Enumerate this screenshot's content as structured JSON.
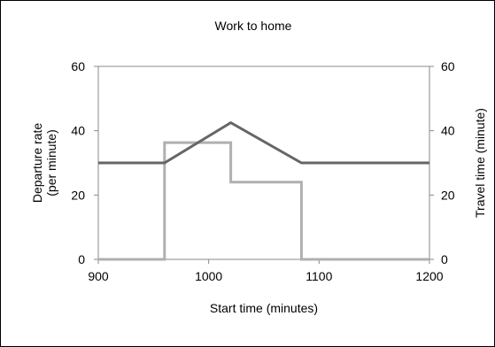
{
  "chart_data": {
    "type": "line",
    "title": "Work to home",
    "xlabel": "Start time (minutes)",
    "ylabel_left": [
      "Departure rate",
      "(per minute)"
    ],
    "ylabel_right": "Travel time (minute)",
    "xlim": [
      900,
      1200
    ],
    "ylim_left": [
      0,
      60
    ],
    "ylim_right": [
      0,
      60
    ],
    "x_ticks": [
      900,
      1000,
      1100,
      1200
    ],
    "y_ticks_left": [
      0,
      20,
      40,
      60
    ],
    "y_ticks_right": [
      0,
      20,
      40,
      60
    ],
    "grid": false,
    "legend": "none",
    "series": [
      {
        "axis": "right",
        "color": "#666666",
        "points": [
          [
            900,
            30
          ],
          [
            960,
            30
          ],
          [
            1020,
            42.5
          ],
          [
            1084,
            30
          ],
          [
            1200,
            30
          ]
        ]
      },
      {
        "axis": "left",
        "color": "#b0b0b0",
        "points": [
          [
            900,
            0
          ],
          [
            960,
            0
          ],
          [
            960,
            36.3
          ],
          [
            1020,
            36.3
          ],
          [
            1020,
            24
          ],
          [
            1084,
            24
          ],
          [
            1084,
            0
          ],
          [
            1200,
            0
          ]
        ]
      }
    ]
  }
}
